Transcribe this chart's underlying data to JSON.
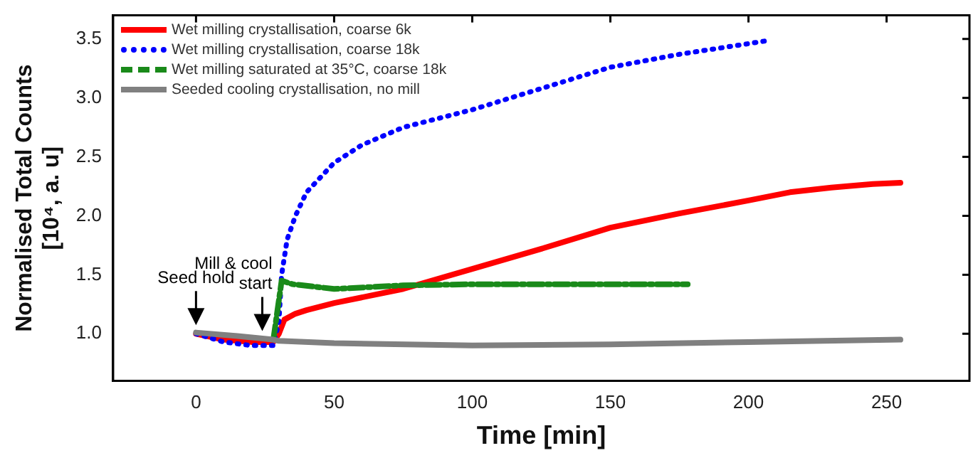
{
  "chart_data": {
    "type": "line",
    "xlabel": "Time [min]",
    "ylabel": "Normalised Total Counts\n[10⁴, a. u]",
    "xlim": [
      -30,
      280
    ],
    "xticks": [
      0,
      50,
      100,
      150,
      200,
      250
    ],
    "ylim": [
      0.6,
      3.7
    ],
    "yticks": [
      {
        "value": 1,
        "label": "1.0"
      },
      1.5,
      {
        "value": 2,
        "label": "2.0"
      },
      2.5,
      {
        "value": 3,
        "label": "3.0"
      },
      3.5
    ],
    "grid": false,
    "legend": "top left",
    "marker": "none",
    "series": [
      {
        "name": "Wet milling crystallisation, coarse 6k",
        "color": "#ff0000",
        "line_style": "solid",
        "x": [
          0,
          10,
          20,
          28,
          30,
          32,
          36,
          40,
          50,
          75,
          100,
          125,
          150,
          175,
          200,
          215,
          230,
          245,
          255
        ],
        "values": [
          1.0,
          0.95,
          0.93,
          0.93,
          1.0,
          1.12,
          1.17,
          1.2,
          1.26,
          1.38,
          1.55,
          1.72,
          1.9,
          2.02,
          2.13,
          2.2,
          2.24,
          2.27,
          2.28
        ]
      },
      {
        "name": "Wet milling crystallisation, coarse 18k",
        "color": "#0000ff",
        "line_style": "dotted",
        "x": [
          0,
          10,
          20,
          28,
          30,
          31,
          33,
          36,
          40,
          50,
          60,
          75,
          100,
          125,
          150,
          175,
          200,
          208
        ],
        "values": [
          1.0,
          0.93,
          0.9,
          0.9,
          1.1,
          1.5,
          1.8,
          2.0,
          2.2,
          2.45,
          2.6,
          2.75,
          2.9,
          3.08,
          3.26,
          3.37,
          3.46,
          3.49
        ]
      },
      {
        "name": "Wet milling saturated at 35°C, coarse 18k",
        "color": "#1a8a1a",
        "line_style": "dashed",
        "x": [
          28,
          31,
          35,
          50,
          75,
          100,
          150,
          178
        ],
        "values": [
          0.95,
          1.45,
          1.42,
          1.38,
          1.41,
          1.42,
          1.42,
          1.42
        ]
      },
      {
        "name": "Seeded cooling crystallisation, no mill",
        "color": "#808080",
        "line_style": "solid",
        "x": [
          0,
          15,
          28,
          30,
          50,
          100,
          150,
          200,
          255
        ],
        "values": [
          1.01,
          0.98,
          0.95,
          0.94,
          0.92,
          0.9,
          0.91,
          0.93,
          0.95
        ]
      }
    ],
    "annotations": [
      {
        "text": "Seed hold",
        "x": 0,
        "y": 1.0
      },
      {
        "text": "Mill & cool\nstart",
        "x": 24,
        "y": 0.95
      }
    ]
  }
}
